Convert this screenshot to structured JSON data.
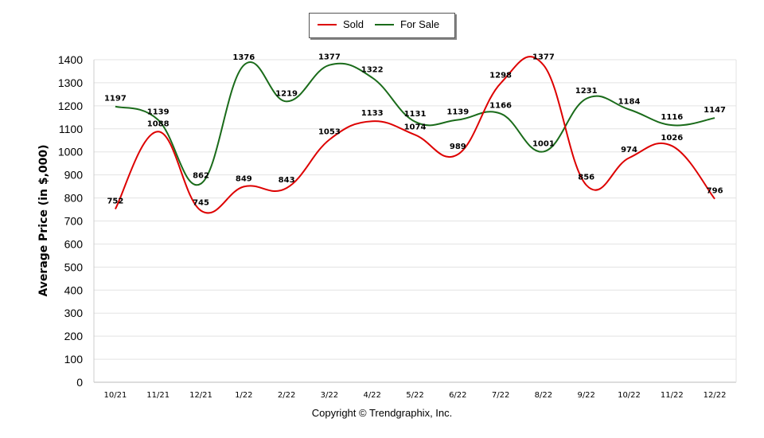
{
  "chart_data": {
    "type": "line",
    "title": "",
    "xlabel": "",
    "ylabel": "Average Price (in $,000)",
    "categories": [
      "10/21",
      "11/21",
      "12/21",
      "1/22",
      "2/22",
      "3/22",
      "4/22",
      "5/22",
      "6/22",
      "7/22",
      "8/22",
      "9/22",
      "10/22",
      "11/22",
      "12/22"
    ],
    "series": [
      {
        "name": "Sold",
        "color": "#dd0000",
        "values": [
          752,
          1088,
          745,
          849,
          843,
          1053,
          1133,
          1074,
          989,
          1298,
          1377,
          856,
          974,
          1026,
          796
        ]
      },
      {
        "name": "For Sale",
        "color": "#1a6b1a",
        "values": [
          1197,
          1139,
          862,
          1376,
          1219,
          1377,
          1322,
          1131,
          1139,
          1166,
          1001,
          1231,
          1184,
          1116,
          1147
        ]
      }
    ],
    "ylim": [
      0,
      1400
    ],
    "yticks": [
      0,
      100,
      200,
      300,
      400,
      500,
      600,
      700,
      800,
      900,
      1000,
      1100,
      1200,
      1300,
      1400
    ],
    "grid": true,
    "legend_position": "top-center"
  },
  "footer": {
    "copyright": "Copyright © Trendgraphix, Inc."
  }
}
